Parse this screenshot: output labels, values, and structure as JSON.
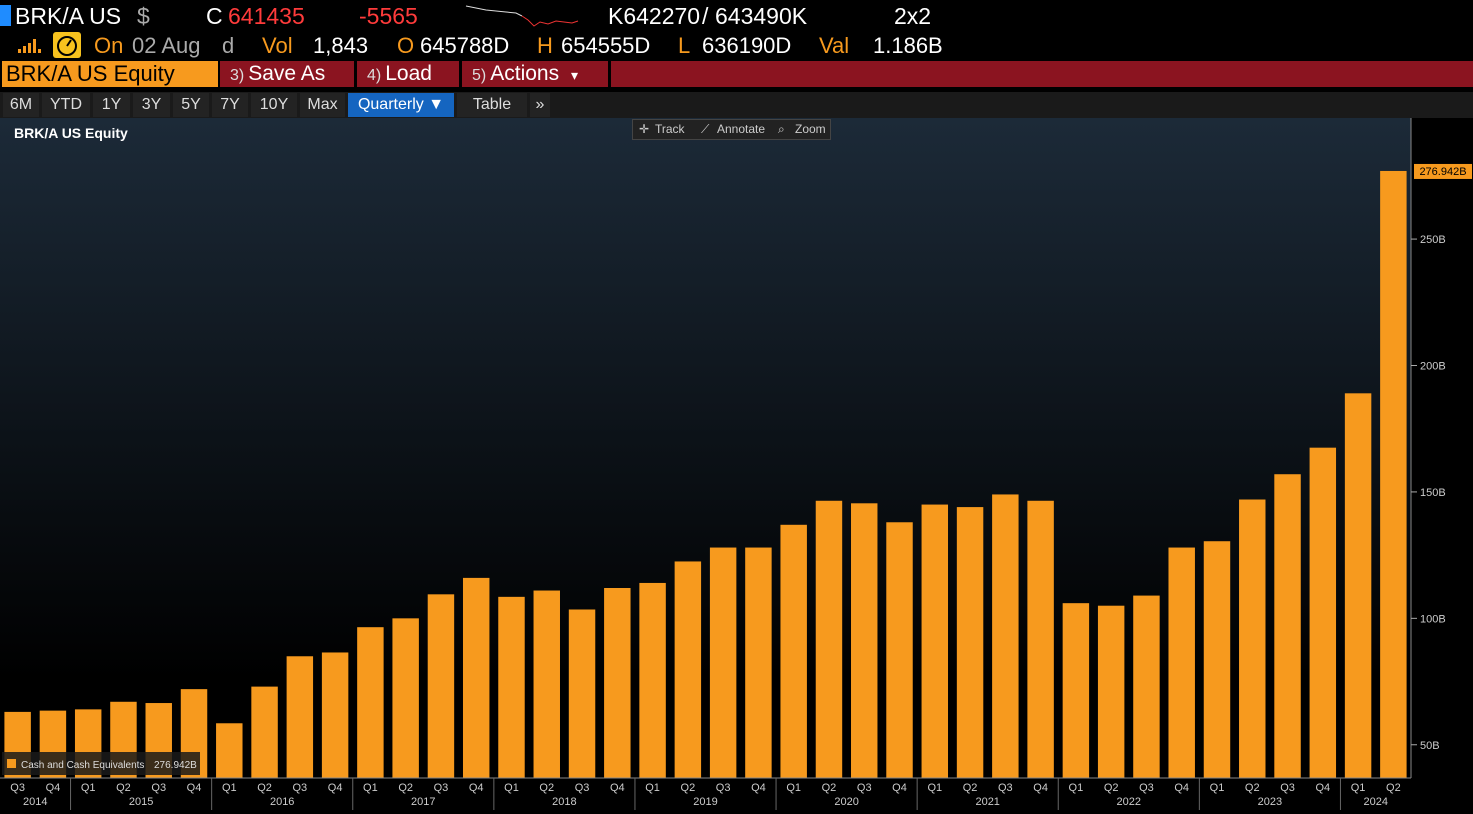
{
  "header": {
    "ticker": "BRK/A US",
    "currency": "$",
    "last_label": "C",
    "last": "641435",
    "change": "-5565",
    "bid": "K642270",
    "ask": "643490K",
    "bid_ask_sep": "/",
    "size": "2x2",
    "on_label": "On",
    "date": "02 Aug",
    "date_suffix": "d",
    "vol_label": "Vol",
    "vol": "1,843",
    "open_label": "O",
    "open": "645788D",
    "high_label": "H",
    "high": "654555D",
    "low_label": "L",
    "low": "636190D",
    "val_label": "Val",
    "val": "1.186B"
  },
  "menu": {
    "security": "BRK/A US Equity",
    "save_num": "3)",
    "save_label": "Save As",
    "load_num": "4)",
    "load_label": "Load",
    "actions_num": "5)",
    "actions_label": "Actions",
    "actions_arrow": "▾"
  },
  "ranges": [
    "6M",
    "YTD",
    "1Y",
    "3Y",
    "5Y",
    "7Y",
    "10Y",
    "Max"
  ],
  "period": "Quarterly ▼",
  "table_label": "Table",
  "more_label": "»",
  "tools": {
    "track": "Track",
    "annotate": "Annotate",
    "zoom": "Zoom"
  },
  "colors": {
    "bar": "#f79a1e",
    "menu_bg": "#8b1420",
    "selected": "#1565c0"
  },
  "chart_data": {
    "type": "bar",
    "title": "BRK/A US Equity",
    "series": [
      {
        "name": "Cash and Cash Equivalents",
        "last_value_label": "276.942B",
        "values": [
          63,
          63.5,
          64,
          67,
          66.5,
          72,
          58.5,
          73,
          85,
          86.5,
          96.5,
          100,
          109.5,
          116,
          108.5,
          111,
          103.5,
          112,
          114,
          122.5,
          128,
          128,
          137,
          146.5,
          145.5,
          138,
          145,
          144,
          149,
          146.5,
          106,
          105,
          109,
          128,
          130.5,
          147,
          157,
          167.5,
          189,
          276.942
        ]
      }
    ],
    "categories": [
      "Q3",
      "Q4",
      "Q1",
      "Q2",
      "Q3",
      "Q4",
      "Q1",
      "Q2",
      "Q3",
      "Q4",
      "Q1",
      "Q2",
      "Q3",
      "Q4",
      "Q1",
      "Q2",
      "Q3",
      "Q4",
      "Q1",
      "Q2",
      "Q3",
      "Q4",
      "Q1",
      "Q2",
      "Q3",
      "Q4",
      "Q1",
      "Q2",
      "Q3",
      "Q4",
      "Q1",
      "Q2",
      "Q3",
      "Q4",
      "Q1",
      "Q2",
      "Q3",
      "Q4",
      "Q1",
      "Q2"
    ],
    "years": [
      {
        "label": "2014",
        "start": 0,
        "count": 2
      },
      {
        "label": "2015",
        "start": 2,
        "count": 4
      },
      {
        "label": "2016",
        "start": 6,
        "count": 4
      },
      {
        "label": "2017",
        "start": 10,
        "count": 4
      },
      {
        "label": "2018",
        "start": 14,
        "count": 4
      },
      {
        "label": "2019",
        "start": 18,
        "count": 4
      },
      {
        "label": "2020",
        "start": 22,
        "count": 4
      },
      {
        "label": "2021",
        "start": 26,
        "count": 4
      },
      {
        "label": "2022",
        "start": 30,
        "count": 4
      },
      {
        "label": "2023",
        "start": 34,
        "count": 4
      },
      {
        "label": "2024",
        "start": 38,
        "count": 2
      }
    ],
    "yticks": [
      {
        "value": 50,
        "label": "50B"
      },
      {
        "value": 100,
        "label": "100B"
      },
      {
        "value": 150,
        "label": "150B"
      },
      {
        "value": 200,
        "label": "200B"
      },
      {
        "value": 250,
        "label": "250B"
      }
    ],
    "ylim": [
      40,
      295
    ],
    "unit": "B",
    "legend_position": "bottom-left"
  }
}
